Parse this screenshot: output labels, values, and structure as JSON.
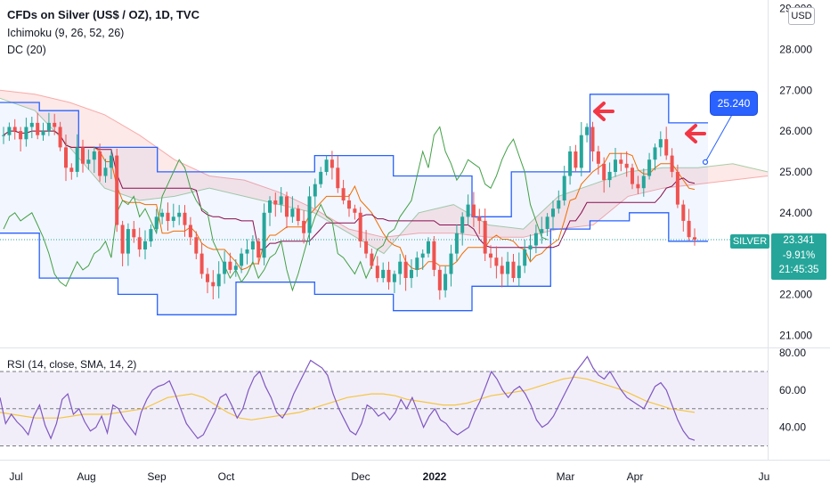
{
  "header": {
    "title": "CFDs on Silver (US$ / OZ), 1D, TVC",
    "ichimoku": "Ichimoku (9, 26, 52, 26)",
    "donchian": "DC (20)"
  },
  "currency_button": "USD",
  "symbol_tag": "SILVER",
  "price_box": {
    "last": "23.341",
    "change": "-9.91%",
    "countdown": "21:45:35"
  },
  "annotation_label": "25.240",
  "rsi_header": "RSI (14, close, SMA, 14, 2)",
  "colors": {
    "up": "#26a69a",
    "down": "#ef5350",
    "accent": "#2962ff",
    "rsi_line": "#7e57c2",
    "rsi_ma": "#f4c542",
    "arrow": "#f23645"
  },
  "chart_data": [
    {
      "type": "candlestick",
      "title": "CFDs on Silver (US$ / OZ), 1D, TVC",
      "x_ticks": [
        "Jul",
        "Aug",
        "Sep",
        "Oct",
        "Dec",
        "2022",
        "Mar",
        "Apr",
        "Ju"
      ],
      "y_ticks": [
        "21.000",
        "22.000",
        "23.000",
        "24.000",
        "25.000",
        "26.000",
        "27.000",
        "28.000",
        "29.000"
      ],
      "ylim": [
        20.7,
        29.1
      ],
      "last_price": 23.341,
      "close_path": [
        25.9,
        26.1,
        26.0,
        25.8,
        26.1,
        26.2,
        25.9,
        26.0,
        26.2,
        26.1,
        25.6,
        25.1,
        25.0,
        25.6,
        25.2,
        25.3,
        25.5,
        24.9,
        25.1,
        25.4,
        23.7,
        23.0,
        23.6,
        23.4,
        23.1,
        23.3,
        23.6,
        23.9,
        24.0,
        23.8,
        23.9,
        24.0,
        23.7,
        23.4,
        23.0,
        22.5,
        22.3,
        22.2,
        22.5,
        22.8,
        22.6,
        22.7,
        23.0,
        23.1,
        23.3,
        22.9,
        24.0,
        24.3,
        24.2,
        24.4,
        23.9,
        24.1,
        23.8,
        23.5,
        24.4,
        24.7,
        25.0,
        25.3,
        25.1,
        24.6,
        24.3,
        24.1,
        24.0,
        23.3,
        23.0,
        22.7,
        22.4,
        22.6,
        22.3,
        22.5,
        22.8,
        22.4,
        22.6,
        22.9,
        23.0,
        23.3,
        22.6,
        22.1,
        22.5,
        23.0,
        23.5,
        23.9,
        24.2,
        23.9,
        23.8,
        23.0,
        22.9,
        22.7,
        22.5,
        22.8,
        22.4,
        22.7,
        23.1,
        23.2,
        23.5,
        23.6,
        23.9,
        24.1,
        24.3,
        24.9,
        25.5,
        25.1,
        25.9,
        26.1,
        25.5,
        25.2,
        24.8,
        25.0,
        25.3,
        25.2,
        25.1,
        24.7,
        24.6,
        24.9,
        25.3,
        25.6,
        25.8,
        25.4,
        25.0,
        24.2,
        23.8,
        23.4,
        23.341
      ],
      "ichimoku_cloud": {
        "span_a": [
          26.8,
          26.5,
          25.6,
          24.6,
          24.3,
          24.4,
          24.6,
          24.4,
          24.2,
          24.0,
          23.5,
          23.0,
          24.0,
          24.2,
          23.7,
          23.6,
          24.4,
          24.7,
          25.0,
          25.1,
          25.1,
          25.2,
          25.0
        ],
        "span_b": [
          27.0,
          26.9,
          26.7,
          26.4,
          25.9,
          25.3,
          24.9,
          24.8,
          24.5,
          24.1,
          23.6,
          23.4,
          23.5,
          23.5,
          23.4,
          23.4,
          23.6,
          23.7,
          24.4,
          24.6,
          24.7,
          24.8,
          24.9
        ]
      },
      "donchian_upper": [
        26.7,
        26.5,
        25.6,
        25.6,
        25.0,
        25.0,
        25.0,
        25.0,
        25.4,
        25.4,
        24.9,
        24.9,
        23.9,
        25.0,
        25.0,
        26.9,
        26.9,
        26.2
      ],
      "donchian_lower": [
        23.5,
        22.4,
        22.4,
        22.0,
        21.5,
        21.5,
        22.3,
        22.3,
        22.0,
        22.0,
        21.6,
        21.6,
        22.2,
        22.2,
        23.6,
        23.8,
        24.0,
        23.3
      ],
      "annotation": 25.24
    },
    {
      "type": "line",
      "title": "RSI (14, close, SMA, 14, 2)",
      "y_ticks": [
        "40.00",
        "60.00",
        "80.00"
      ],
      "ylim": [
        24,
        82
      ],
      "bands": [
        30,
        50,
        70
      ],
      "rsi": [
        56,
        42,
        47,
        43,
        40,
        36,
        46,
        52,
        41,
        34,
        42,
        55,
        58,
        47,
        50,
        43,
        38,
        40,
        46,
        37,
        52,
        50,
        44,
        40,
        36,
        48,
        55,
        60,
        62,
        63,
        65,
        58,
        50,
        42,
        38,
        34,
        36,
        42,
        48,
        56,
        58,
        52,
        45,
        50,
        60,
        67,
        70,
        62,
        56,
        48,
        45,
        50,
        58,
        64,
        70,
        76,
        74,
        72,
        68,
        58,
        50,
        44,
        38,
        36,
        42,
        52,
        50,
        46,
        48,
        44,
        48,
        55,
        50,
        56,
        48,
        40,
        46,
        50,
        44,
        42,
        38,
        36,
        38,
        40,
        48,
        54,
        62,
        70,
        66,
        60,
        56,
        60,
        62,
        58,
        52,
        44,
        40,
        42,
        46,
        52,
        58,
        64,
        70,
        74,
        78,
        72,
        68,
        66,
        70,
        65,
        60,
        56,
        54,
        52,
        50,
        56,
        62,
        64,
        60,
        52,
        44,
        38,
        34,
        33
      ],
      "rsi_ma": [
        48,
        47,
        46,
        45,
        45,
        45,
        46,
        47,
        47,
        47,
        48,
        49,
        50,
        53,
        56,
        57,
        58,
        56,
        52,
        48,
        45,
        44,
        45,
        46,
        47,
        48,
        50,
        52,
        54,
        56,
        57,
        58,
        58,
        57,
        55,
        54,
        53,
        52,
        52,
        53,
        55,
        57,
        58,
        59,
        60,
        62,
        64,
        66,
        67,
        66,
        64,
        62,
        60,
        57,
        54,
        52,
        50,
        49,
        48
      ]
    }
  ]
}
